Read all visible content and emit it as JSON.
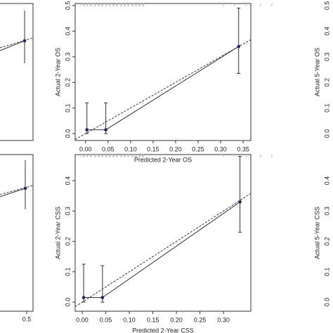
{
  "chart_data": [
    {
      "type": "calibration",
      "xlabel": "Predicted  2-Year OS",
      "ylabel": "Actual 2-Year OS",
      "xlim": [
        -0.023,
        0.367
      ],
      "ylim": [
        -0.027,
        0.508
      ],
      "xticks": [
        {
          "value": 0,
          "label": "0.00"
        },
        {
          "value": 0.05,
          "label": "0.05"
        },
        {
          "value": 0.1,
          "label": "0.10"
        },
        {
          "value": 0.15,
          "label": "0.15"
        },
        {
          "value": 0.2,
          "label": "0.20"
        },
        {
          "value": 0.25,
          "label": "0.25"
        },
        {
          "value": 0.3,
          "label": "0.30"
        },
        {
          "value": 0.35,
          "label": "0.35"
        }
      ],
      "yticks": [
        {
          "value": 0,
          "label": "0.0"
        },
        0.1,
        0.2,
        0.3,
        0.4,
        0.5
      ],
      "x": [
        0.003,
        0.045,
        0.34
      ],
      "values": [
        0.015,
        0.015,
        0.34
      ],
      "lower": [
        0,
        0,
        0.235
      ],
      "upper": [
        0.12,
        0.12,
        0.49
      ],
      "right_axis_label": "Actual 5-Year OS",
      "right_ticks": [
        {
          "value": 0,
          "label": "0.0"
        },
        0.1,
        0.2,
        0.3,
        0.4,
        0.5
      ]
    },
    {
      "type": "calibration",
      "xlabel": "Predicted  2-Year CSS",
      "ylabel": "Actual 2-Year CSS",
      "xlim": [
        -0.015,
        0.358
      ],
      "ylim": [
        -0.03,
        0.486
      ],
      "xticks": [
        {
          "value": 0,
          "label": "0.00"
        },
        {
          "value": 0.05,
          "label": "0.05"
        },
        {
          "value": 0.1,
          "label": "0.10"
        },
        {
          "value": 0.15,
          "label": "0.15"
        },
        {
          "value": 0.2,
          "label": "0.20"
        },
        {
          "value": 0.25,
          "label": "0.25"
        },
        {
          "value": 0.3,
          "label": "0.30"
        }
      ],
      "yticks": [
        {
          "value": 0,
          "label": "0.0"
        },
        0.1,
        0.2,
        0.3,
        0.4
      ],
      "x": [
        0.003,
        0.043,
        0.335
      ],
      "values": [
        0.015,
        0.015,
        0.33
      ],
      "lower": [
        0,
        0,
        0.23
      ],
      "upper": [
        0.125,
        0.12,
        0.48
      ],
      "right_axis_label": "Actual 5-Year CSS",
      "right_ticks": [
        {
          "value": 0,
          "label": "0.0"
        },
        0.1,
        0.2,
        0.3,
        0.4
      ],
      "left_tick": 0.5
    }
  ]
}
